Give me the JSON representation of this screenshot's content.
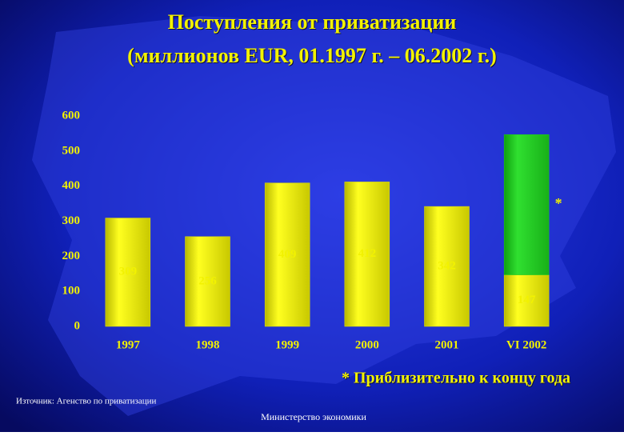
{
  "chart_data": {
    "type": "stacked_bar",
    "title": "Поступления от приватизации",
    "subtitle": "(миллионов EUR, 01.1997 г. – 06.2002 г.)",
    "categories": [
      "1997",
      "1998",
      "1999",
      "2000",
      "2001",
      "VI 2002"
    ],
    "series": [
      {
        "color": "#e6e600",
        "values": [
          309,
          256,
          409,
          412,
          342,
          147
        ]
      },
      {
        "color": "#1fcc1f",
        "values": [
          null,
          null,
          null,
          null,
          null,
          400
        ],
        "label": "*"
      }
    ],
    "ylim": [
      0,
      600
    ],
    "yticks": [
      0,
      100,
      200,
      300,
      400,
      500,
      600
    ],
    "footnote": "* Приблизительно к концу года",
    "source": "Източник: Агенство по приватизации",
    "footer": "Министерство экономики"
  }
}
